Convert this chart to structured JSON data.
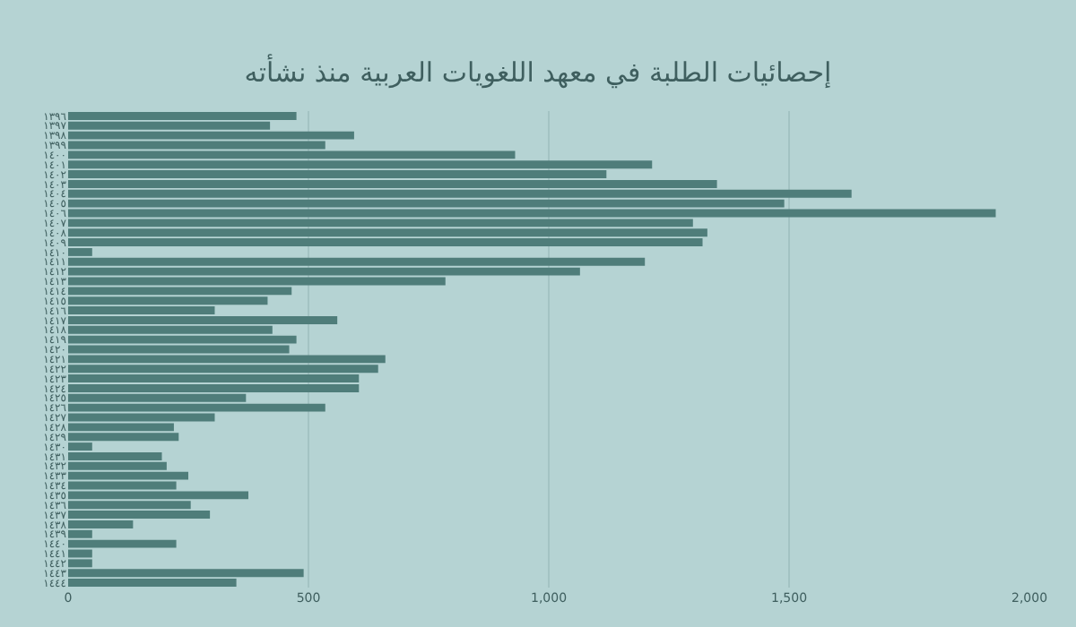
{
  "chart_data": {
    "type": "bar",
    "orientation": "horizontal",
    "title": "إحصائيات الطلبة في معهد اللغويات العربية منذ نشأته",
    "categories": [
      "١٣٩٦",
      "١٣٩٧",
      "١٣٩٨",
      "١٣٩٩",
      "١٤٠٠",
      "١٤٠١",
      "١٤٠٢",
      "١٤٠٣",
      "١٤٠٤",
      "١٤٠٥",
      "١٤٠٦",
      "١٤٠٧",
      "١٤٠٨",
      "١٤٠٩",
      "١٤١٠",
      "١٤١١",
      "١٤١٢",
      "١٤١٣",
      "١٤١٤",
      "١٤١٥",
      "١٤١٦",
      "١٤١٧",
      "١٤١٨",
      "١٤١٩",
      "١٤٢٠",
      "١٤٢١",
      "١٤٢٢",
      "١٤٢٣",
      "١٤٢٤",
      "١٤٢٥",
      "١٤٢٦",
      "١٤٢٧",
      "١٤٢٨",
      "١٤٢٩",
      "١٤٣٠",
      "١٤٣١",
      "١٤٣٢",
      "١٤٣٣",
      "١٤٣٤",
      "١٤٣٥",
      "١٤٣٦",
      "١٤٣٧",
      "١٤٣٨",
      "١٤٣٩",
      "١٤٤٠",
      "١٤٤١",
      "١٤٤٢",
      "١٤٤٣",
      "١٤٤٤"
    ],
    "values": [
      475,
      420,
      595,
      535,
      930,
      1215,
      1120,
      1350,
      1630,
      1490,
      1930,
      1300,
      1330,
      1320,
      50,
      1200,
      1065,
      785,
      465,
      415,
      305,
      560,
      425,
      475,
      460,
      660,
      645,
      605,
      605,
      370,
      535,
      305,
      220,
      230,
      50,
      195,
      205,
      250,
      225,
      375,
      255,
      295,
      135,
      50,
      225,
      50,
      50,
      490,
      350
    ],
    "color": "#4f7d7a",
    "xlim": [
      0,
      2000
    ],
    "xticks": [
      0,
      {
        "value": 500,
        "label": "500"
      },
      {
        "value": 1000,
        "label": "1,000"
      },
      {
        "value": 1500,
        "label": "1,500"
      },
      {
        "value": 2000,
        "label": "2,000"
      }
    ],
    "grid": "x"
  }
}
